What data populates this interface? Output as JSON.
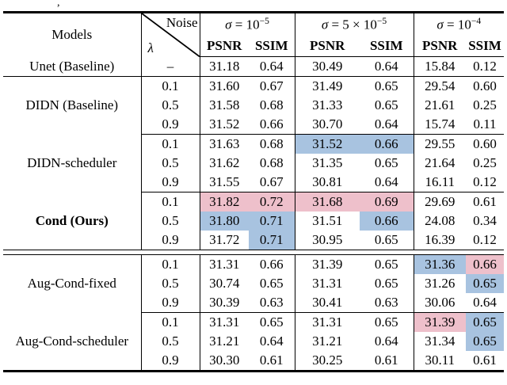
{
  "page": {
    "caption_fragment": ","
  },
  "table": {
    "colors": {
      "highlight_pink": "#eec0cb",
      "highlight_blue": "#a8c3e0"
    },
    "header": {
      "models_label": "Models",
      "noise_label": "Noise",
      "lambda_label": "λ",
      "groups": [
        {
          "sigma_symbol": "σ",
          "sigma_rest": " = 10",
          "sigma_exp": "−5",
          "psnr_label": "PSNR",
          "ssim_label": "SSIM"
        },
        {
          "sigma_symbol": "σ",
          "sigma_rest": " = 5 × 10",
          "sigma_exp": "−5",
          "psnr_label": "PSNR",
          "ssim_label": "SSIM"
        },
        {
          "sigma_symbol": "σ",
          "sigma_rest": " = 10",
          "sigma_exp": "−4",
          "psnr_label": "PSNR",
          "ssim_label": "SSIM"
        }
      ]
    },
    "groups": [
      {
        "model": "Unet (Baseline)",
        "bold": false,
        "rule_after": true,
        "double_rule_before": false,
        "rows": [
          {
            "lambda": "–",
            "values": [
              "31.18",
              "0.64",
              "30.49",
              "0.64",
              "15.84",
              "0.12"
            ],
            "hl": [
              "",
              "",
              "",
              "",
              "",
              ""
            ]
          }
        ]
      },
      {
        "model": "DIDN (Baseline)",
        "bold": false,
        "rule_after": true,
        "double_rule_before": false,
        "rows": [
          {
            "lambda": "0.1",
            "values": [
              "31.60",
              "0.67",
              "31.49",
              "0.65",
              "29.54",
              "0.60"
            ],
            "hl": [
              "",
              "",
              "",
              "",
              "",
              ""
            ]
          },
          {
            "lambda": "0.5",
            "values": [
              "31.58",
              "0.68",
              "31.33",
              "0.65",
              "21.61",
              "0.25"
            ],
            "hl": [
              "",
              "",
              "",
              "",
              "",
              ""
            ]
          },
          {
            "lambda": "0.9",
            "values": [
              "31.52",
              "0.66",
              "30.70",
              "0.64",
              "15.74",
              "0.11"
            ],
            "hl": [
              "",
              "",
              "",
              "",
              "",
              ""
            ]
          }
        ]
      },
      {
        "model": "DIDN-scheduler",
        "bold": false,
        "rule_after": true,
        "double_rule_before": false,
        "rows": [
          {
            "lambda": "0.1",
            "values": [
              "31.63",
              "0.68",
              "31.52",
              "0.66",
              "29.55",
              "0.60"
            ],
            "hl": [
              "",
              "",
              "b",
              "b",
              "",
              ""
            ]
          },
          {
            "lambda": "0.5",
            "values": [
              "31.62",
              "0.68",
              "31.35",
              "0.65",
              "21.64",
              "0.25"
            ],
            "hl": [
              "",
              "",
              "",
              "",
              "",
              ""
            ]
          },
          {
            "lambda": "0.9",
            "values": [
              "31.55",
              "0.67",
              "30.81",
              "0.64",
              "16.11",
              "0.12"
            ],
            "hl": [
              "",
              "",
              "",
              "",
              "",
              ""
            ]
          }
        ]
      },
      {
        "model": "Cond (Ours)",
        "bold": true,
        "rule_after": false,
        "double_rule_before": false,
        "rows": [
          {
            "lambda": "0.1",
            "values": [
              "31.82",
              "0.72",
              "31.68",
              "0.69",
              "29.69",
              "0.61"
            ],
            "hl": [
              "p",
              "p",
              "p",
              "p",
              "",
              ""
            ]
          },
          {
            "lambda": "0.5",
            "values": [
              "31.80",
              "0.71",
              "31.51",
              "0.66",
              "24.08",
              "0.34"
            ],
            "hl": [
              "b",
              "b",
              "",
              "b",
              "",
              ""
            ]
          },
          {
            "lambda": "0.9",
            "values": [
              "31.72",
              "0.71",
              "30.95",
              "0.65",
              "16.39",
              "0.12"
            ],
            "hl": [
              "",
              "b",
              "",
              "",
              "",
              ""
            ]
          }
        ]
      },
      {
        "model": "Aug-Cond-fixed",
        "bold": false,
        "rule_after": true,
        "double_rule_before": true,
        "rows": [
          {
            "lambda": "0.1",
            "values": [
              "31.31",
              "0.66",
              "31.39",
              "0.65",
              "31.36",
              "0.66"
            ],
            "hl": [
              "",
              "",
              "",
              "",
              "b",
              "p"
            ]
          },
          {
            "lambda": "0.5",
            "values": [
              "30.74",
              "0.65",
              "31.31",
              "0.65",
              "31.26",
              "0.65"
            ],
            "hl": [
              "",
              "",
              "",
              "",
              "",
              "b"
            ]
          },
          {
            "lambda": "0.9",
            "values": [
              "30.39",
              "0.63",
              "30.41",
              "0.63",
              "30.06",
              "0.64"
            ],
            "hl": [
              "",
              "",
              "",
              "",
              "",
              ""
            ]
          }
        ]
      },
      {
        "model": "Aug-Cond-scheduler",
        "bold": false,
        "rule_after": false,
        "double_rule_before": false,
        "rows": [
          {
            "lambda": "0.1",
            "values": [
              "31.31",
              "0.65",
              "31.31",
              "0.65",
              "31.39",
              "0.65"
            ],
            "hl": [
              "",
              "",
              "",
              "",
              "p",
              "b"
            ]
          },
          {
            "lambda": "0.5",
            "values": [
              "31.21",
              "0.64",
              "31.21",
              "0.64",
              "31.34",
              "0.65"
            ],
            "hl": [
              "",
              "",
              "",
              "",
              "",
              "b"
            ]
          },
          {
            "lambda": "0.9",
            "values": [
              "30.30",
              "0.61",
              "30.25",
              "0.61",
              "30.11",
              "0.61"
            ],
            "hl": [
              "",
              "",
              "",
              "",
              "",
              ""
            ]
          }
        ]
      }
    ]
  }
}
